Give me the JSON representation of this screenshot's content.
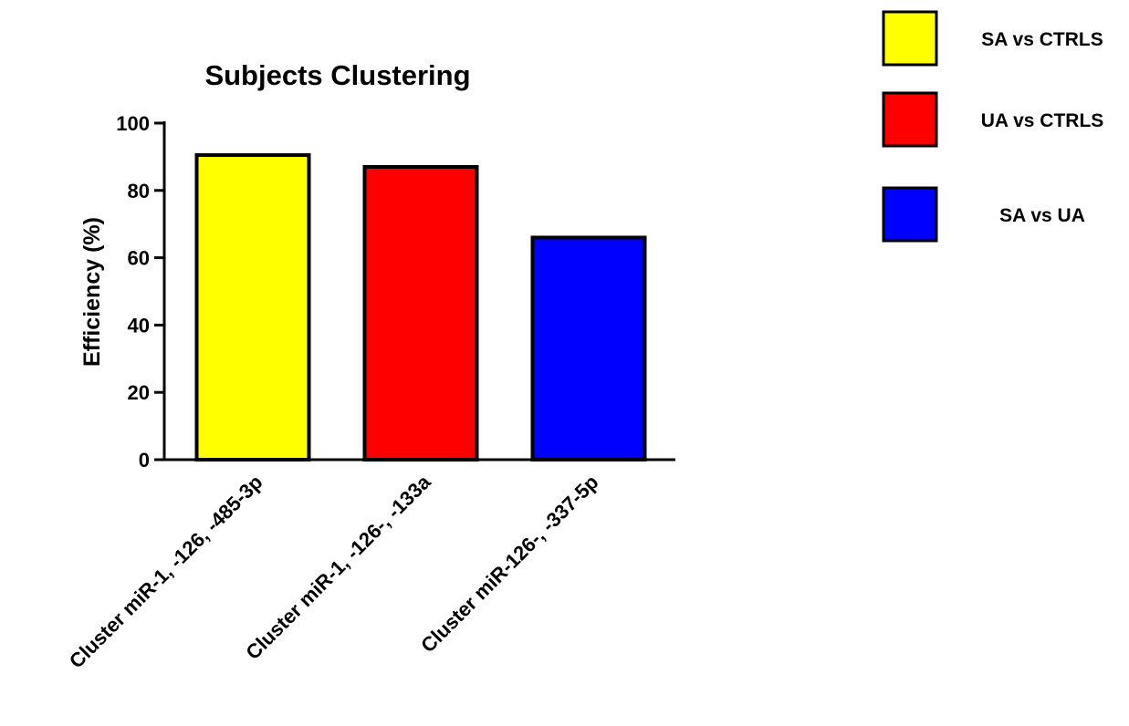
{
  "chart_data": {
    "type": "bar",
    "title": "Subjects Clustering",
    "xlabel": "",
    "ylabel": "Efficiency (%)",
    "ylim": [
      0,
      100
    ],
    "yticks": [
      0,
      20,
      40,
      60,
      80,
      100
    ],
    "grid": false,
    "legend_position": "top-right",
    "categories": [
      "Cluster miR-1, -126, -485-3p",
      "Cluster miR-1, -126-, -133a",
      "Cluster miR-126-, -337-5p"
    ],
    "values": [
      90.5,
      87,
      66
    ],
    "bar_colors": [
      "#ffff00",
      "#ff0000",
      "#0000ff"
    ],
    "legend": [
      {
        "label": "SA vs CTRLS",
        "color": "#ffff00"
      },
      {
        "label": "UA vs CTRLS",
        "color": "#ff0000"
      },
      {
        "label": "SA vs UA",
        "color": "#0000ff"
      }
    ]
  }
}
